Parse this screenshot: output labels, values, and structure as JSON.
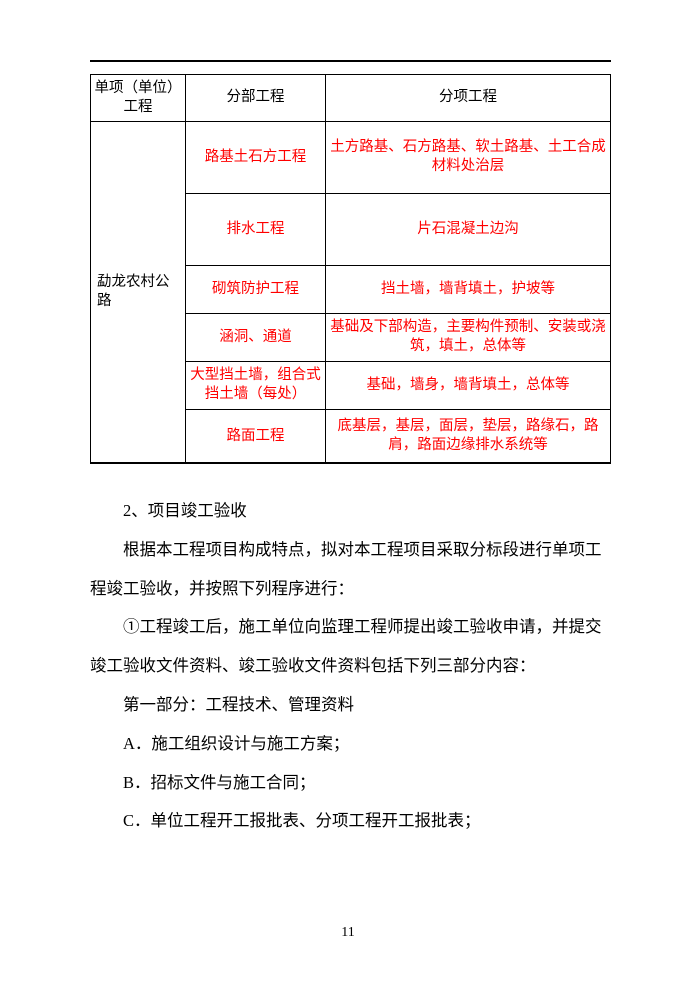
{
  "table": {
    "header": {
      "col1_line1": "单项（单位）",
      "col1_line2": "工程",
      "col2": "分部工程",
      "col3": "分项工程"
    },
    "project_name": "勐龙农村公路",
    "rows": [
      {
        "b": "路基土石方工程",
        "c": "土方路基、石方路基、软土路基、土工合成材料处治层"
      },
      {
        "b": "排水工程",
        "c": "片石混凝土边沟"
      },
      {
        "b": "砌筑防护工程",
        "c": "挡土墙，墙背填土，护坡等"
      },
      {
        "b": "涵洞、通道",
        "c": "基础及下部构造，主要构件预制、安装或浇筑，填土，总体等"
      },
      {
        "b": "大型挡土墙，组合式挡土墙（每处）",
        "c": "基础，墙身，墙背填土，总体等"
      },
      {
        "b": "路面工程",
        "c": "底基层，基层，面层，垫层，路缘石，路肩，路面边缘排水系统等"
      }
    ]
  },
  "body": {
    "p1": "2、项目竣工验收",
    "p2": "根据本工程项目构成特点，拟对本工程项目采取分标段进行单项工程竣工验收，并按照下列程序进行：",
    "p3": "①工程竣工后，施工单位向监理工程师提出竣工验收申请，并提交竣工验收文件资料、竣工验收文件资料包括下列三部分内容：",
    "p4": "第一部分：工程技术、管理资料",
    "p5": "A．施工组织设计与施工方案；",
    "p6": "B．招标文件与施工合同；",
    "p7": "C．单位工程开工报批表、分项工程开工报批表；"
  },
  "page_number": "11"
}
